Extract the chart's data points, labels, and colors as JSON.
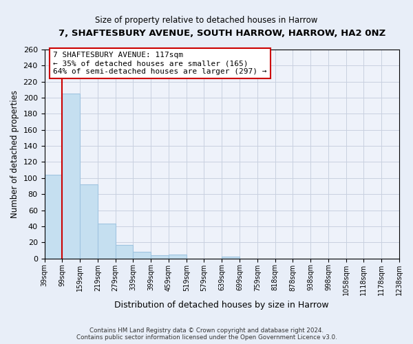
{
  "title": "7, SHAFTESBURY AVENUE, SOUTH HARROW, HARROW, HA2 0NZ",
  "subtitle": "Size of property relative to detached houses in Harrow",
  "xlabel": "Distribution of detached houses by size in Harrow",
  "ylabel": "Number of detached properties",
  "bar_values": [
    104,
    205,
    92,
    43,
    17,
    8,
    4,
    5,
    0,
    0,
    2,
    0,
    0,
    0,
    0,
    0,
    0,
    0,
    0,
    0
  ],
  "bar_labels": [
    "39sqm",
    "99sqm",
    "159sqm",
    "219sqm",
    "279sqm",
    "339sqm",
    "399sqm",
    "459sqm",
    "519sqm",
    "579sqm",
    "639sqm",
    "699sqm",
    "759sqm",
    "818sqm",
    "878sqm",
    "938sqm",
    "998sqm",
    "1058sqm",
    "1118sqm",
    "1178sqm",
    "1238sqm"
  ],
  "bar_color": "#c5dff0",
  "bar_edge_color": "#a0c4e0",
  "vline_x": 1,
  "vline_color": "#cc0000",
  "annotation_line1": "7 SHAFTESBURY AVENUE: 117sqm",
  "annotation_line2": "← 35% of detached houses are smaller (165)",
  "annotation_line3": "64% of semi-detached houses are larger (297) →",
  "annotation_box_color": "white",
  "annotation_box_edgecolor": "#cc0000",
  "ylim": [
    0,
    260
  ],
  "yticks": [
    0,
    20,
    40,
    60,
    80,
    100,
    120,
    140,
    160,
    180,
    200,
    220,
    240,
    260
  ],
  "footer_line1": "Contains HM Land Registry data © Crown copyright and database right 2024.",
  "footer_line2": "Contains public sector information licensed under the Open Government Licence v3.0.",
  "background_color": "#e8eef8",
  "plot_background_color": "#eef2fa"
}
